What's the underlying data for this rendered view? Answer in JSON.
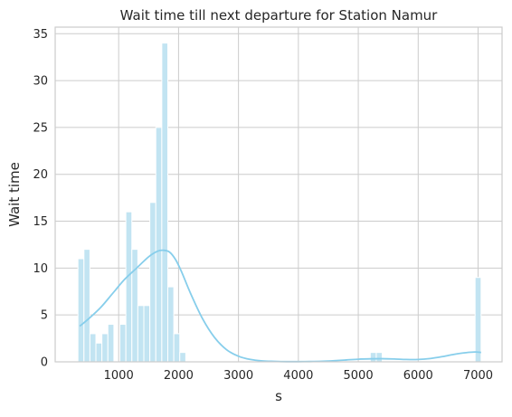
{
  "chart_data": {
    "type": "histogram",
    "title": "Wait time till next departure for Station Namur",
    "xlabel": "s",
    "ylabel": "Wait time",
    "xlim": [
      -60,
      7400
    ],
    "ylim": [
      0,
      35.7
    ],
    "xticks": [
      1000,
      2000,
      3000,
      4000,
      5000,
      6000,
      7000
    ],
    "yticks": [
      0,
      5,
      10,
      15,
      20,
      25,
      30,
      35
    ],
    "grid": true,
    "bin_width": 100,
    "bins": [
      {
        "x0": 320,
        "x1": 420,
        "count": 11
      },
      {
        "x0": 420,
        "x1": 520,
        "count": 12
      },
      {
        "x0": 520,
        "x1": 620,
        "count": 3
      },
      {
        "x0": 620,
        "x1": 720,
        "count": 2
      },
      {
        "x0": 720,
        "x1": 820,
        "count": 3
      },
      {
        "x0": 820,
        "x1": 920,
        "count": 4
      },
      {
        "x0": 920,
        "x1": 1020,
        "count": 0
      },
      {
        "x0": 1020,
        "x1": 1120,
        "count": 4
      },
      {
        "x0": 1120,
        "x1": 1220,
        "count": 16
      },
      {
        "x0": 1220,
        "x1": 1320,
        "count": 12
      },
      {
        "x0": 1320,
        "x1": 1420,
        "count": 6
      },
      {
        "x0": 1420,
        "x1": 1520,
        "count": 6
      },
      {
        "x0": 1520,
        "x1": 1620,
        "count": 17
      },
      {
        "x0": 1620,
        "x1": 1720,
        "count": 25
      },
      {
        "x0": 1720,
        "x1": 1820,
        "count": 34
      },
      {
        "x0": 1820,
        "x1": 1920,
        "count": 8
      },
      {
        "x0": 1920,
        "x1": 2020,
        "count": 3
      },
      {
        "x0": 2020,
        "x1": 2120,
        "count": 1
      },
      {
        "x0": 5200,
        "x1": 5300,
        "count": 1
      },
      {
        "x0": 5300,
        "x1": 5400,
        "count": 1
      },
      {
        "x0": 6950,
        "x1": 7050,
        "count": 9
      }
    ],
    "kde": {
      "x": [
        350,
        500,
        700,
        900,
        1100,
        1300,
        1500,
        1650,
        1750,
        1850,
        1950,
        2050,
        2200,
        2400,
        2600,
        2800,
        3000,
        3200,
        3400,
        3600,
        3800,
        4000,
        4200,
        4400,
        4600,
        4800,
        5000,
        5200,
        5400,
        5600,
        5800,
        6000,
        6200,
        6400,
        6600,
        6800,
        6950,
        7050
      ],
      "y": [
        3.8,
        4.6,
        5.8,
        7.3,
        8.8,
        10.0,
        11.2,
        11.8,
        11.9,
        11.7,
        10.9,
        9.6,
        7.3,
        4.6,
        2.6,
        1.3,
        0.6,
        0.25,
        0.1,
        0.05,
        0.02,
        0.02,
        0.03,
        0.06,
        0.12,
        0.2,
        0.28,
        0.32,
        0.33,
        0.3,
        0.25,
        0.25,
        0.35,
        0.55,
        0.8,
        0.98,
        1.05,
        1.0
      ]
    },
    "colors": {
      "bar_fill": "#c2e4f2",
      "bar_stroke": "#ffffff",
      "kde_line": "#87ceeb",
      "grid": "#cccccc",
      "frame": "#cccccc"
    }
  }
}
